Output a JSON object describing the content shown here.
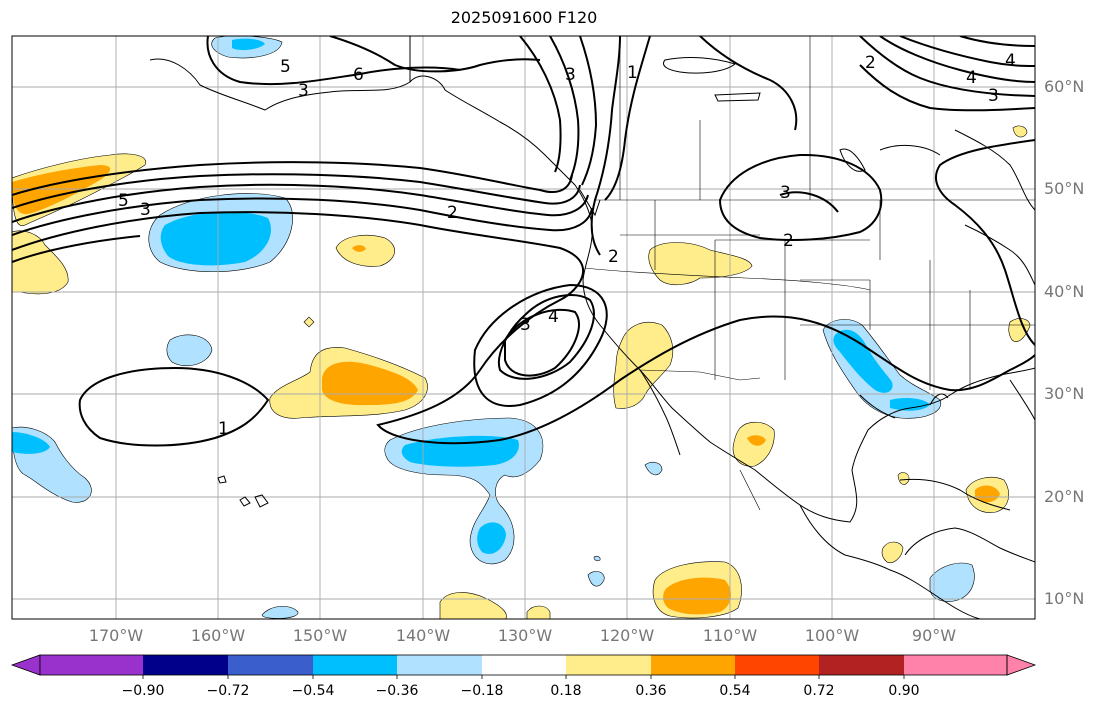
{
  "title": "2025091600 F120",
  "lat_labels": [
    "60°N",
    "50°N",
    "40°N",
    "30°N",
    "20°N",
    "10°N"
  ],
  "lon_labels": [
    "170°W",
    "160°W",
    "150°W",
    "140°W",
    "130°W",
    "120°W",
    "110°W",
    "100°W",
    "90°W"
  ],
  "contour_labels": [
    "5",
    "6",
    "3",
    "3",
    "2",
    "1",
    "2",
    "4",
    "3",
    "2",
    "3",
    "4",
    "3",
    "4",
    "2",
    "1",
    "5",
    "3"
  ],
  "colorbar": {
    "colors": [
      "#9932cc",
      "#00008b",
      "#3a5fcd",
      "#00bfff",
      "#b0e2ff",
      "#ffffff",
      "#ffec8b",
      "#ffa500",
      "#ff4500",
      "#b22222",
      "#ff82ab",
      "#ff82ab"
    ],
    "ticks": [
      "−0.90",
      "−0.72",
      "−0.54",
      "−0.36",
      "−0.18",
      "0.18",
      "0.36",
      "0.54",
      "0.72",
      "0.90"
    ]
  },
  "shading_colors": {
    "light_blue": "#b0e2ff",
    "blue": "#00bfff",
    "yellow": "#ffec8b",
    "orange": "#ffa500"
  }
}
